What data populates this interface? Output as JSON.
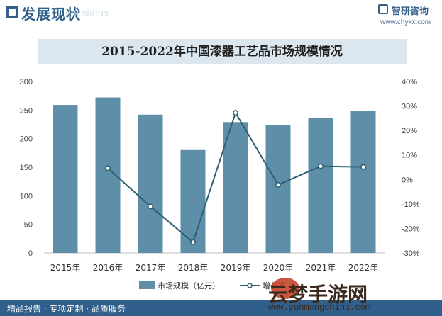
{
  "header": {
    "title": "发展现状",
    "subtitle_en": "ent status",
    "brand_name": "智研咨询",
    "brand_url": "www.chyxx.com"
  },
  "chart_data": {
    "type": "bar",
    "title": "2015-2022年中国漆器工艺品市场规模情况",
    "categories": [
      "2015年",
      "2016年",
      "2017年",
      "2018年",
      "2019年",
      "2020年",
      "2021年",
      "2022年"
    ],
    "series": [
      {
        "name": "市场规模（亿元）",
        "type": "bar",
        "axis": "left",
        "values": [
          259,
          272,
          242,
          180,
          229,
          224,
          236,
          248
        ]
      },
      {
        "name": "增长率",
        "type": "line",
        "axis": "right",
        "values": [
          null,
          4.6,
          -11.0,
          -25.6,
          27.2,
          -2.2,
          5.4,
          5.1
        ],
        "unit": "%"
      }
    ],
    "y_left": {
      "min": 0,
      "max": 300,
      "ticks": [
        0,
        50,
        100,
        150,
        200,
        250,
        300
      ]
    },
    "y_right": {
      "min": -30,
      "max": 40,
      "ticks": [
        "-30%",
        "-20%",
        "-10%",
        "0%",
        "10%",
        "20%",
        "30%",
        "40%"
      ]
    },
    "legend_position": "bottom",
    "colors": {
      "bar": "#5f8fa8",
      "line": "#2c5f72"
    }
  },
  "footer": {
    "text": "精品报告 · 专项定制 · 品质服务"
  },
  "watermark": {
    "text": "云梦手游网",
    "url": "www.yunmengchina.com"
  }
}
